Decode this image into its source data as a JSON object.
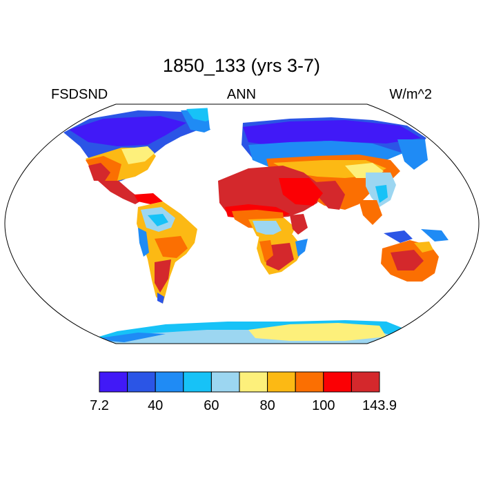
{
  "title": "1850_133 (yrs 3-7)",
  "left_label": "FSDSND",
  "center_label": "ANN",
  "right_label": "W/m^2",
  "colorbar": {
    "colors": [
      "#4119f7",
      "#2b55e6",
      "#1f8bf5",
      "#17c2f7",
      "#9cd6f1",
      "#fdf07b",
      "#fcb914",
      "#fb6f02",
      "#fb0004",
      "#d4282c"
    ],
    "tick_labels": [
      "7.2",
      "40",
      "60",
      "80",
      "100",
      "143.9"
    ]
  },
  "map_colors": {
    "ocean": "#ffffff",
    "coast": "#000000"
  }
}
